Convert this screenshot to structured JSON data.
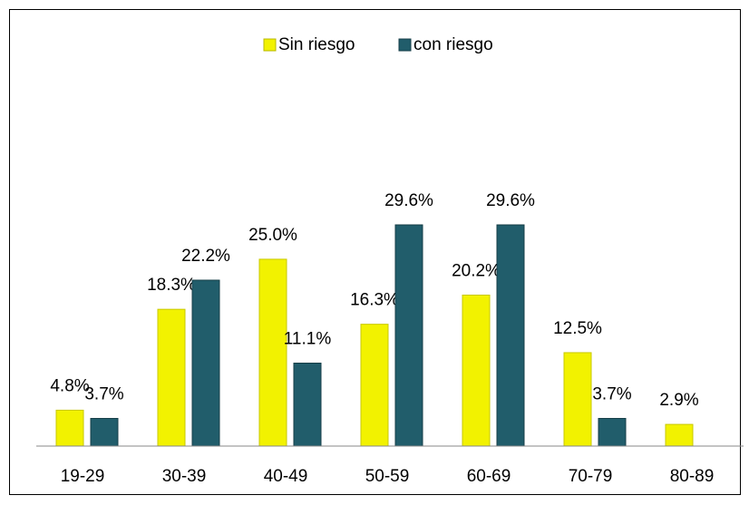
{
  "chart_data": {
    "type": "bar",
    "categories": [
      "19-29",
      "30-39",
      "40-49",
      "50-59",
      "60-69",
      "70-79",
      "80-89"
    ],
    "series": [
      {
        "name": "Sin riesgo",
        "color": "#f2f200",
        "values": [
          4.8,
          18.3,
          25.0,
          16.3,
          20.2,
          12.5,
          2.9
        ],
        "value_labels": [
          "4.8%",
          "18.3%",
          "25.0%",
          "16.3%",
          "20.2%",
          "12.5%",
          "2.9%"
        ]
      },
      {
        "name": "con riesgo",
        "color": "#215d6b",
        "values": [
          3.7,
          22.2,
          11.1,
          29.6,
          29.6,
          3.7,
          null
        ],
        "value_labels": [
          "3.7%",
          "22.2%",
          "11.1%",
          "29.6%",
          "29.6%",
          "3.7%",
          null
        ]
      }
    ],
    "ylim": [
      0,
      35
    ],
    "legend": "top"
  }
}
